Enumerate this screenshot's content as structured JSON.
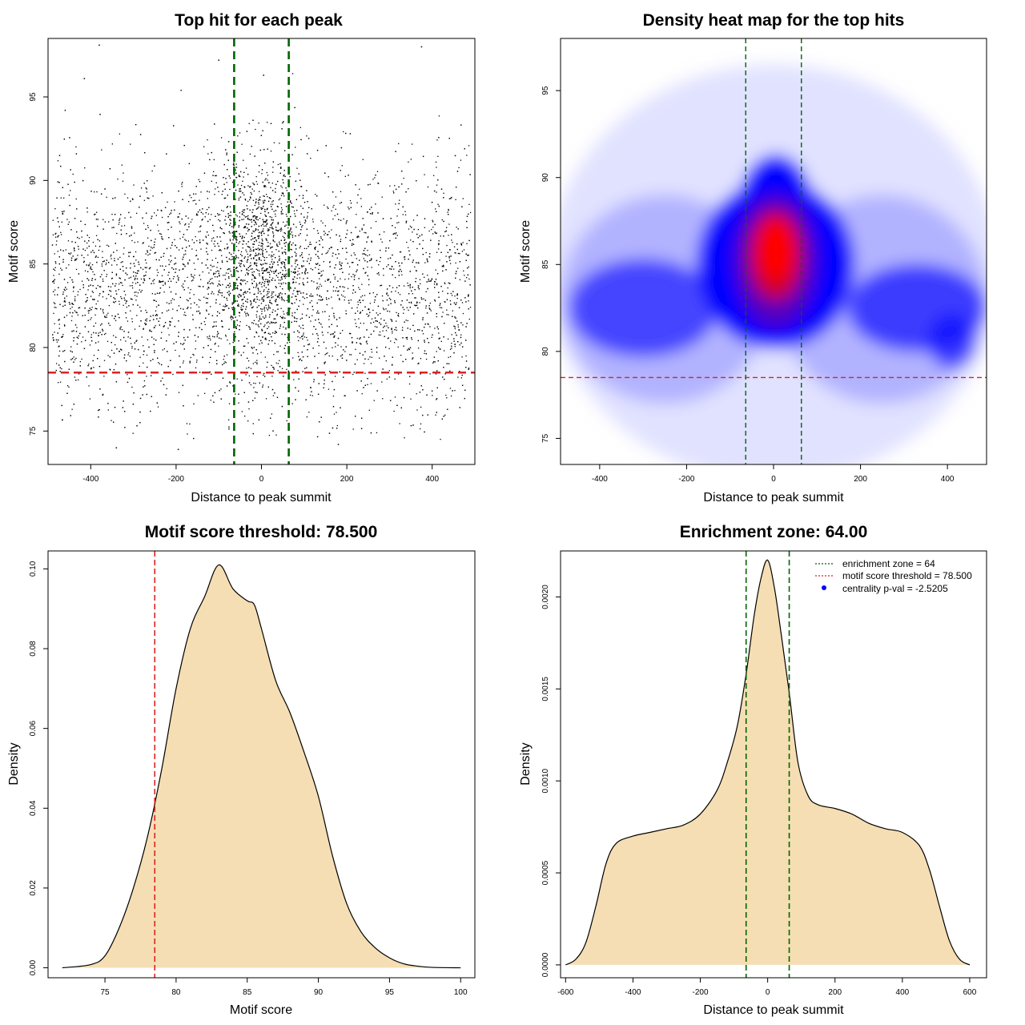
{
  "colors": {
    "points": "#000000",
    "enrichment_line": "#006400",
    "threshold_line": "#dd2222",
    "density_fill": "#f5deb3",
    "heat_low": "#ffffff",
    "heat_mid": "#0000ff",
    "heat_high": "#ff0000"
  },
  "chart_data": [
    {
      "type": "scatter",
      "title": "Top hit for each peak",
      "xlabel": "Distance to peak summit",
      "ylabel": "Motif score",
      "xlim": [
        -500,
        500
      ],
      "ylim": [
        73,
        98.5
      ],
      "xticks": [
        -400,
        -200,
        0,
        200,
        400
      ],
      "xtick_labels": [
        "-400",
        "-200",
        "0",
        "200",
        "400"
      ],
      "yticks": [
        75,
        80,
        85,
        90,
        95
      ],
      "ytick_labels": [
        "75",
        "80",
        "85",
        "90",
        "95"
      ],
      "vlines": [
        -64,
        64
      ],
      "hline": 78.5,
      "n_points": 6000,
      "background_distribution": {
        "x_range": [
          -490,
          490
        ],
        "y_mean": 83.5,
        "y_sd": 3.6
      },
      "central_distribution": {
        "x_mean": 0,
        "x_sd": 55,
        "y_mean": 85.5,
        "y_sd": 3.2
      },
      "sample_points": [
        {
          "x": -380,
          "y": 98.1
        },
        {
          "x": 375,
          "y": 98.0
        },
        {
          "x": -415,
          "y": 96.1
        },
        {
          "x": -195,
          "y": 73.9
        },
        {
          "x": -340,
          "y": 74.0
        },
        {
          "x": 180,
          "y": 74.2
        },
        {
          "x": 5,
          "y": 96.3
        },
        {
          "x": -100,
          "y": 97.2
        }
      ]
    },
    {
      "type": "heatmap",
      "title": "Density heat map for the top hits",
      "xlabel": "Distance to peak summit",
      "ylabel": "Motif score",
      "xlim": [
        -490,
        490
      ],
      "ylim": [
        73.5,
        98.0
      ],
      "xticks": [
        -400,
        -200,
        0,
        200,
        400
      ],
      "xtick_labels": [
        "-400",
        "-200",
        "0",
        "200",
        "400"
      ],
      "yticks": [
        75,
        80,
        85,
        90,
        95
      ],
      "ytick_labels": [
        "75",
        "80",
        "85",
        "90",
        "95"
      ],
      "vlines": [
        -64,
        64
      ],
      "hline": 78.5,
      "peak": {
        "x": 5,
        "y": 85.8
      },
      "color_scale": [
        "white",
        "blue",
        "red"
      ]
    },
    {
      "type": "area",
      "title": "Motif score threshold: 78.500",
      "xlabel": "Motif score",
      "ylabel": "Density",
      "xlim": [
        71,
        101
      ],
      "ylim": [
        -0.0025,
        0.1045
      ],
      "xticks": [
        75,
        80,
        85,
        90,
        95,
        100
      ],
      "xtick_labels": [
        "75",
        "80",
        "85",
        "90",
        "95",
        "100"
      ],
      "yticks": [
        0.0,
        0.02,
        0.04,
        0.06,
        0.08,
        0.1
      ],
      "ytick_labels": [
        "0.00",
        "0.02",
        "0.04",
        "0.06",
        "0.08",
        "0.10"
      ],
      "vline": 78.5,
      "x": [
        72,
        74,
        75,
        76,
        77,
        78,
        79,
        80,
        81,
        82,
        83,
        84,
        85,
        85.5,
        86,
        87,
        88,
        89,
        90,
        91,
        92,
        93,
        94,
        95,
        96,
        97,
        98,
        100
      ],
      "y": [
        0.0,
        0.0008,
        0.003,
        0.01,
        0.02,
        0.033,
        0.05,
        0.07,
        0.085,
        0.093,
        0.101,
        0.095,
        0.092,
        0.091,
        0.085,
        0.072,
        0.064,
        0.054,
        0.043,
        0.028,
        0.016,
        0.009,
        0.005,
        0.0025,
        0.001,
        0.0004,
        0.0001,
        0.0
      ]
    },
    {
      "type": "area",
      "title": "Enrichment zone: 64.00",
      "xlabel": "Distance to peak summit",
      "ylabel": "Density",
      "xlim": [
        -615,
        650
      ],
      "ylim": [
        -7e-05,
        0.00225
      ],
      "xticks": [
        -600,
        -400,
        -200,
        0,
        200,
        400,
        600
      ],
      "xtick_labels": [
        "-600",
        "-400",
        "-200",
        "0",
        "200",
        "400",
        "600"
      ],
      "yticks": [
        0.0,
        0.0005,
        0.001,
        0.0015,
        0.002
      ],
      "ytick_labels": [
        "0.0000",
        "0.0005",
        "0.0010",
        "0.0015",
        "0.0020"
      ],
      "vlines": [
        -64,
        64
      ],
      "x": [
        -600,
        -570,
        -540,
        -510,
        -480,
        -450,
        -400,
        -350,
        -300,
        -250,
        -200,
        -150,
        -120,
        -90,
        -64,
        -40,
        -20,
        0,
        20,
        40,
        64,
        90,
        120,
        150,
        200,
        250,
        300,
        350,
        400,
        450,
        480,
        510,
        540,
        570,
        600
      ],
      "y": [
        0.0,
        3e-05,
        0.00012,
        0.00032,
        0.00055,
        0.00066,
        0.0007,
        0.00072,
        0.00074,
        0.00076,
        0.00082,
        0.00095,
        0.0011,
        0.0013,
        0.00158,
        0.0019,
        0.0021,
        0.0022,
        0.00205,
        0.0018,
        0.00148,
        0.0011,
        0.00092,
        0.00087,
        0.00085,
        0.00082,
        0.00077,
        0.00074,
        0.00072,
        0.00065,
        0.00052,
        0.00032,
        0.00013,
        3e-05,
        0.0
      ],
      "legend": {
        "position": "top-right",
        "entries": [
          {
            "label": "enrichment zone = 64",
            "color": "#006400",
            "symbol": "dotted-line"
          },
          {
            "label": "motif score threshold = 78.500",
            "color": "#dd2222",
            "symbol": "dotted-line"
          },
          {
            "label": "centrality p-val = -2.5205",
            "color": "#0000ff",
            "symbol": "dot"
          }
        ]
      }
    }
  ]
}
